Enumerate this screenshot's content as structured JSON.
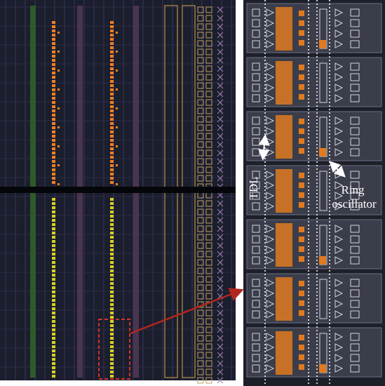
{
  "annotations": {
    "tdl": "TDL",
    "ring_oscillator": [
      "Ring",
      "oscillator"
    ]
  }
}
